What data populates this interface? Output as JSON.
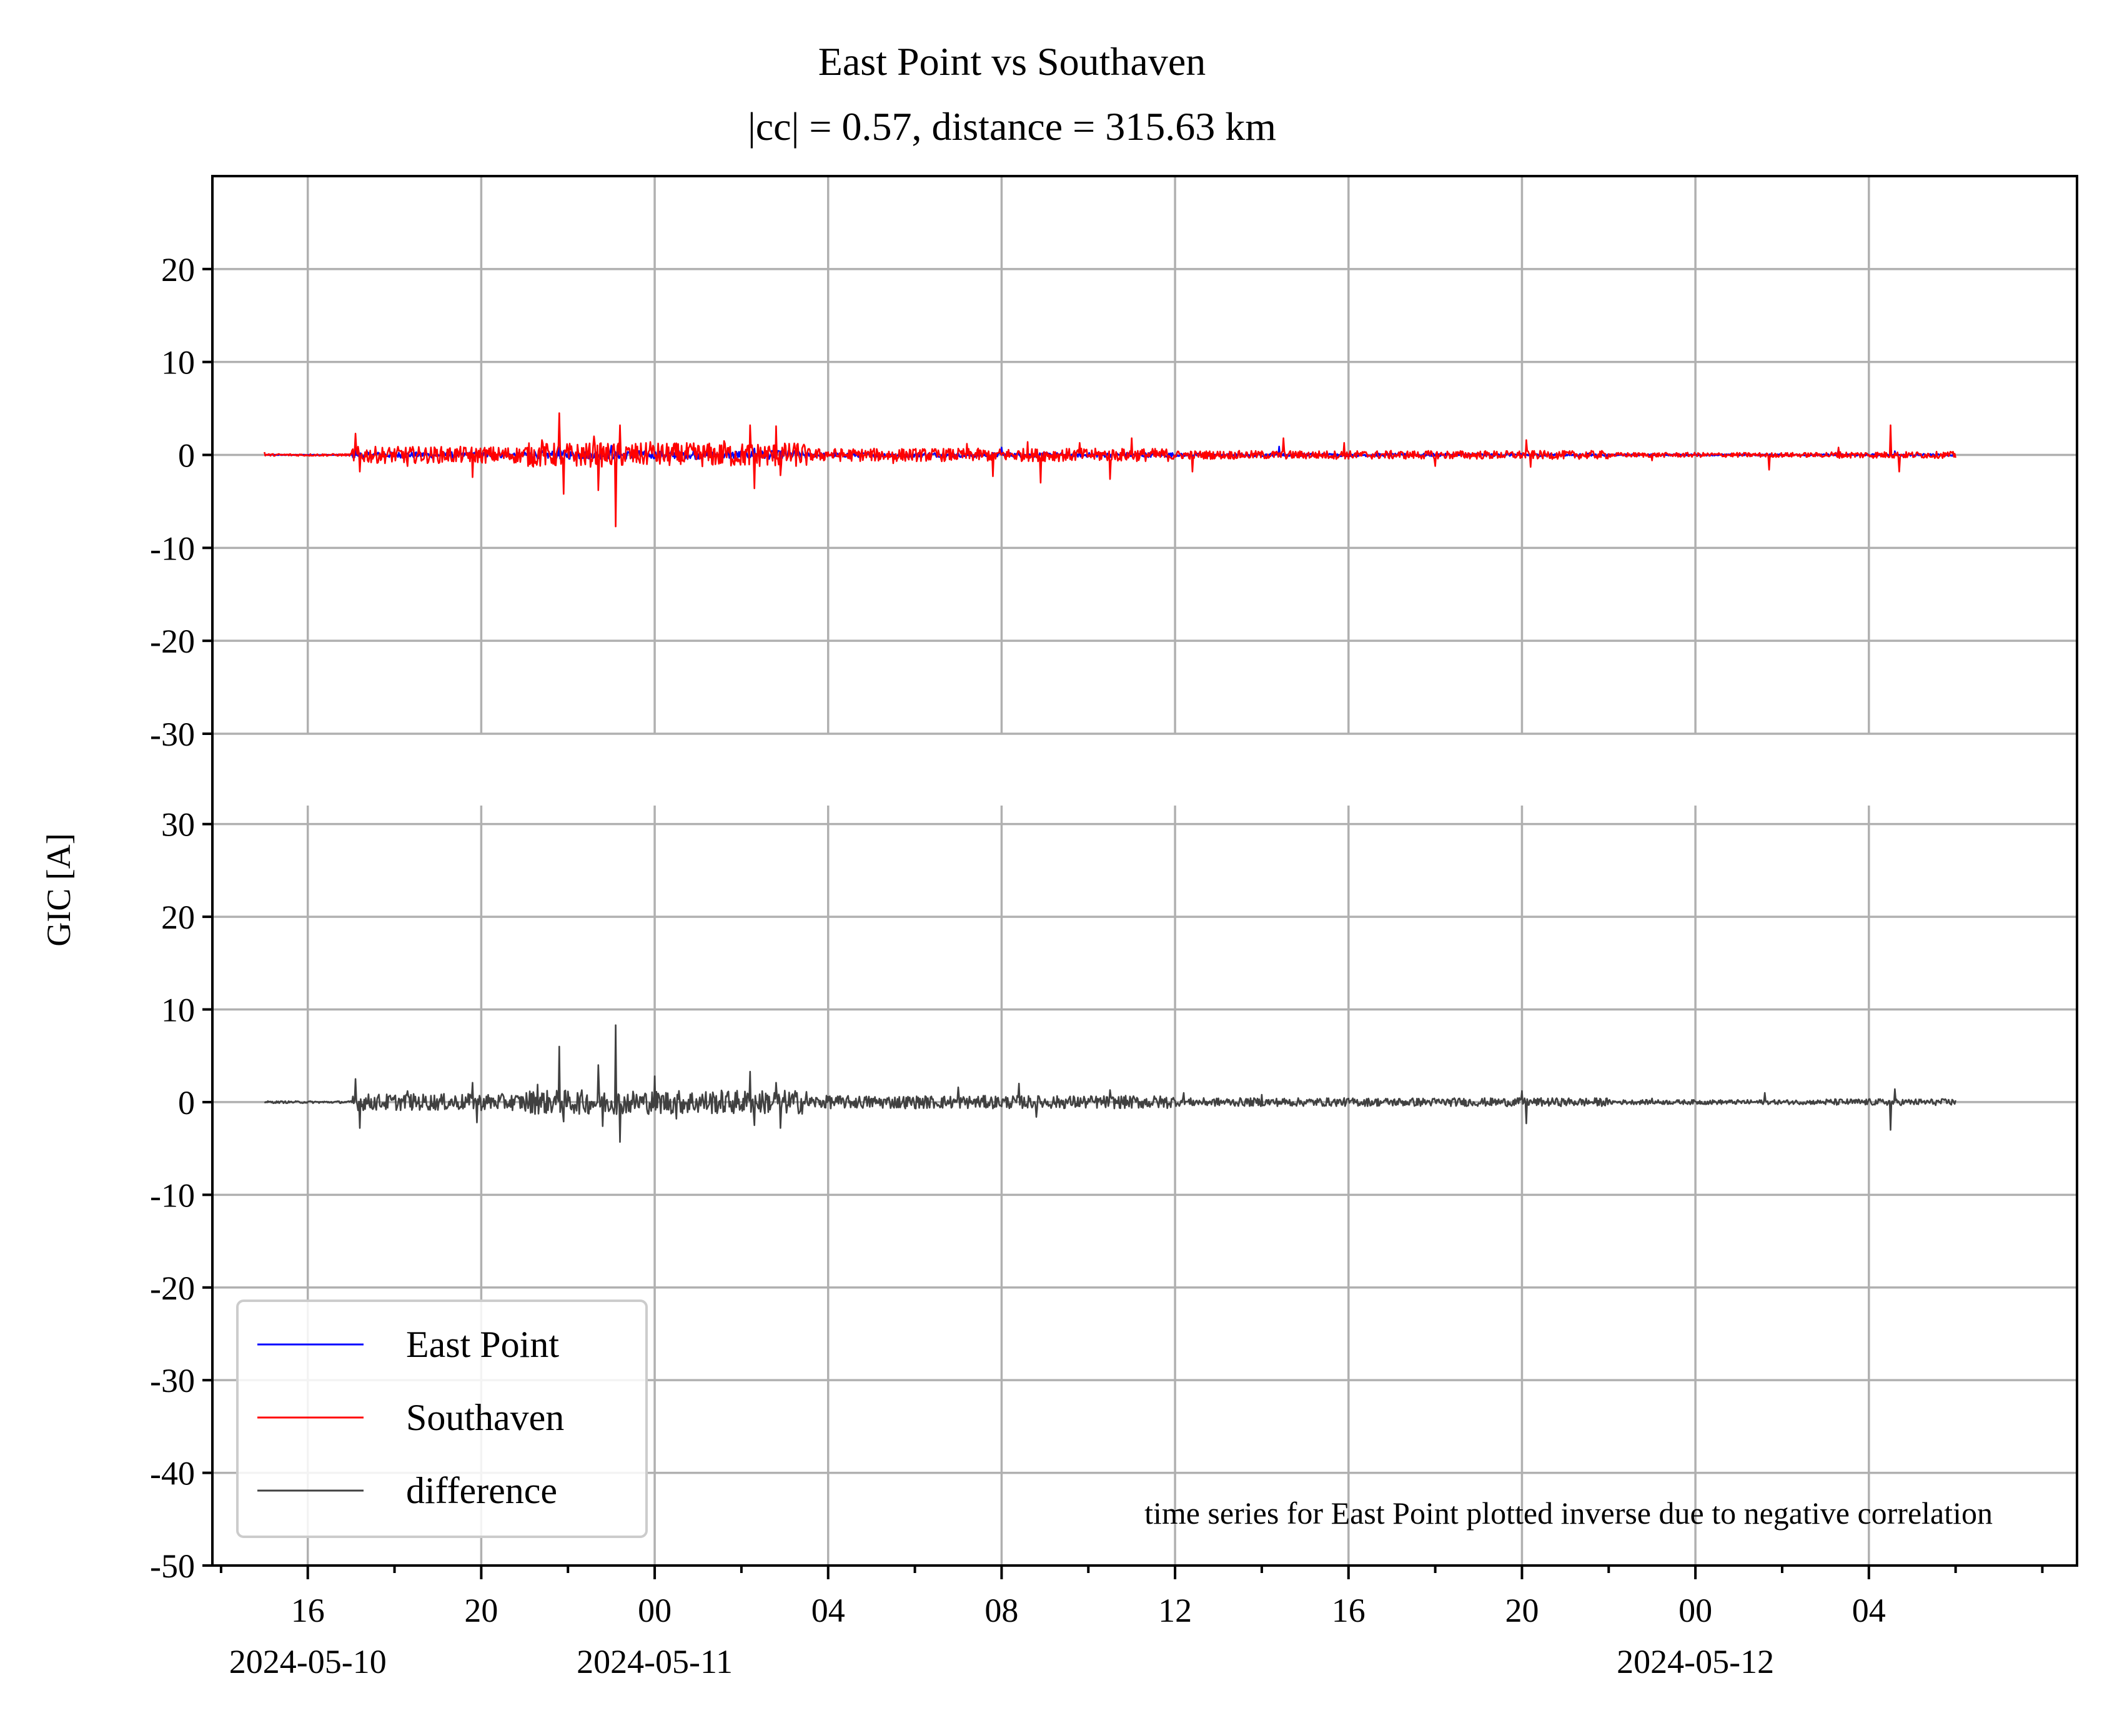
{
  "chart_data": {
    "type": "line",
    "title": "East Point vs Southaven",
    "subtitle": "|cc| = 0.57, distance = 315.63 km",
    "ylabel": "GIC [A]",
    "annotation": "time series for East Point plotted inverse due to negative correlation",
    "legend": {
      "placement": "lower-left",
      "entries": [
        {
          "name": "East Point",
          "color": "#0000ff"
        },
        {
          "name": "Southaven",
          "color": "#ff0000"
        },
        {
          "name": "difference",
          "color": "#404040"
        }
      ]
    },
    "x_axis": {
      "tick_labels": [
        "16",
        "20",
        "00",
        "04",
        "08",
        "12",
        "16",
        "20",
        "00",
        "04"
      ],
      "tick_hours": [
        16,
        20,
        24,
        28,
        32,
        36,
        40,
        44,
        48,
        52
      ],
      "date_labels": [
        {
          "text": "2024-05-10",
          "hour": 16
        },
        {
          "text": "2024-05-11",
          "hour": 24
        },
        {
          "text": "2024-05-12",
          "hour": 48
        }
      ],
      "range_hours": [
        13.8,
        56.8
      ],
      "series_span_hours": [
        15.0,
        54.0
      ],
      "hour_reference": "2024-05-10 00:00"
    },
    "panels": [
      {
        "name": "top",
        "ylim": [
          -30,
          30
        ],
        "yticks": [
          -30,
          -20,
          -10,
          0,
          10,
          20
        ],
        "grid": true,
        "series": [
          {
            "name": "East Point",
            "color": "#0000ff",
            "note": "inverted, |GIC| < 3 A",
            "peaks": [
              [
                17.1,
                0.9
              ],
              [
                21.8,
                0.8
              ],
              [
                23.0,
                1.0
              ],
              [
                24.9,
                0.6
              ],
              [
                26.3,
                0.7
              ],
              [
                32.0,
                0.8
              ],
              [
                38.4,
                0.9
              ],
              [
                51.3,
                0.7
              ],
              [
                52.6,
                0.4
              ]
            ]
          },
          {
            "name": "Southaven",
            "color": "#ff0000",
            "peaks": [
              [
                15.0,
                0.3
              ],
              [
                17.1,
                2.3
              ],
              [
                17.2,
                -1.8
              ],
              [
                18.3,
                -1.2
              ],
              [
                19.8,
                -2.4
              ],
              [
                21.4,
                1.6
              ],
              [
                21.8,
                4.5
              ],
              [
                21.9,
                -4.2
              ],
              [
                22.6,
                2.0
              ],
              [
                22.7,
                -3.8
              ],
              [
                23.1,
                -7.7
              ],
              [
                23.2,
                3.2
              ],
              [
                23.9,
                1.4
              ],
              [
                24.6,
                -1.0
              ],
              [
                25.6,
                1.5
              ],
              [
                26.2,
                3.2
              ],
              [
                26.3,
                -3.6
              ],
              [
                26.8,
                3.1
              ],
              [
                26.9,
                -2.2
              ],
              [
                27.3,
                1.2
              ],
              [
                28.0,
                0.3
              ],
              [
                29.5,
                -0.9
              ],
              [
                31.2,
                1.2
              ],
              [
                31.8,
                -2.3
              ],
              [
                32.6,
                1.4
              ],
              [
                32.9,
                -3.0
              ],
              [
                33.8,
                1.3
              ],
              [
                34.5,
                -2.6
              ],
              [
                35.0,
                1.8
              ],
              [
                36.4,
                -1.8
              ],
              [
                38.5,
                1.8
              ],
              [
                39.9,
                1.3
              ],
              [
                42.0,
                -1.2
              ],
              [
                44.1,
                1.6
              ],
              [
                44.2,
                -1.3
              ],
              [
                47.0,
                -0.6
              ],
              [
                49.7,
                -1.6
              ],
              [
                51.3,
                0.8
              ],
              [
                52.5,
                3.2
              ],
              [
                52.7,
                -1.8
              ],
              [
                54.0,
                -0.3
              ]
            ]
          }
        ]
      },
      {
        "name": "bottom",
        "ylim": [
          -50,
          32
        ],
        "yticks": [
          -50,
          -40,
          -30,
          -20,
          -10,
          0,
          10,
          20,
          30
        ],
        "grid": true,
        "series": [
          {
            "name": "difference",
            "color": "#404040",
            "peaks": [
              [
                15.0,
                0.0
              ],
              [
                17.1,
                2.5
              ],
              [
                17.2,
                -2.8
              ],
              [
                18.3,
                1.2
              ],
              [
                19.8,
                2.1
              ],
              [
                19.9,
                -2.2
              ],
              [
                21.3,
                1.9
              ],
              [
                21.8,
                6.0
              ],
              [
                21.9,
                -2.1
              ],
              [
                22.7,
                4.0
              ],
              [
                22.8,
                -2.6
              ],
              [
                23.1,
                8.3
              ],
              [
                23.2,
                -4.3
              ],
              [
                24.0,
                2.8
              ],
              [
                24.5,
                -1.8
              ],
              [
                26.2,
                3.3
              ],
              [
                26.3,
                -2.5
              ],
              [
                26.8,
                2.1
              ],
              [
                26.9,
                -2.8
              ],
              [
                28.0,
                0.6
              ],
              [
                31.0,
                1.6
              ],
              [
                32.4,
                2.0
              ],
              [
                32.8,
                -1.6
              ],
              [
                34.5,
                1.3
              ],
              [
                36.2,
                1.0
              ],
              [
                38.0,
                0.8
              ],
              [
                44.0,
                1.2
              ],
              [
                44.1,
                -2.3
              ],
              [
                47.0,
                0.4
              ],
              [
                49.6,
                1.0
              ],
              [
                52.5,
                -3.0
              ],
              [
                52.6,
                1.4
              ],
              [
                54.0,
                0.2
              ]
            ]
          }
        ]
      }
    ]
  }
}
